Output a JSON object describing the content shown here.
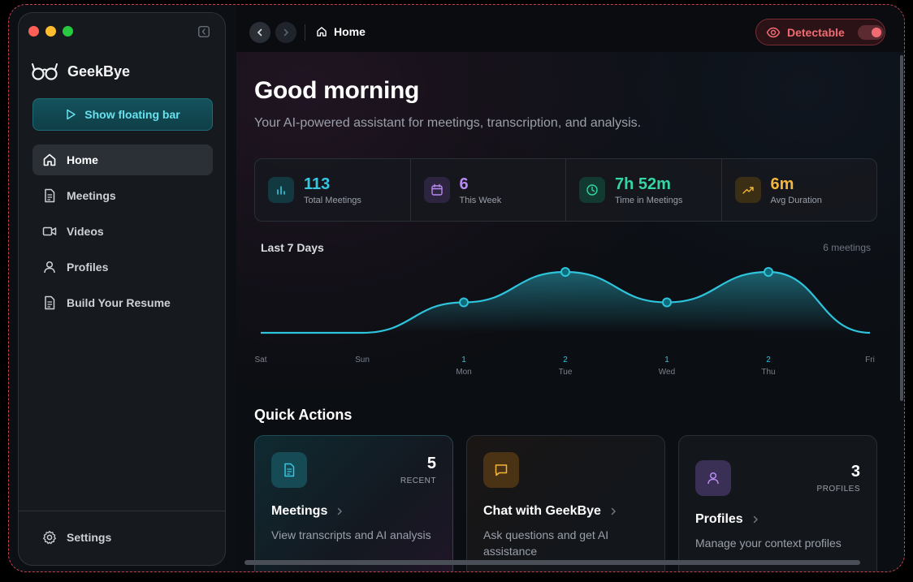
{
  "app": {
    "name": "GeekBye",
    "floating_bar_label": "Show floating bar"
  },
  "sidebar": {
    "items": [
      {
        "label": "Home",
        "icon": "home-icon",
        "active": true
      },
      {
        "label": "Meetings",
        "icon": "document-icon",
        "active": false
      },
      {
        "label": "Videos",
        "icon": "video-icon",
        "active": false
      },
      {
        "label": "Profiles",
        "icon": "user-icon",
        "active": false
      },
      {
        "label": "Build Your Resume",
        "icon": "document-icon",
        "active": false
      }
    ],
    "settings_label": "Settings"
  },
  "topbar": {
    "breadcrumb": "Home",
    "detectable_label": "Detectable",
    "detectable_on": true
  },
  "header": {
    "greeting": "Good morning",
    "subtitle": "Your AI-powered assistant for meetings, transcription, and analysis."
  },
  "stats": [
    {
      "value": "113",
      "label": "Total Meetings",
      "color": "#38c6e0",
      "icon": "bar-chart-icon"
    },
    {
      "value": "6",
      "label": "This Week",
      "color": "#b78bf0",
      "icon": "calendar-icon"
    },
    {
      "value": "7h 52m",
      "label": "Time in Meetings",
      "color": "#35d6a3",
      "icon": "clock-icon"
    },
    {
      "value": "6m",
      "label": "Avg Duration",
      "color": "#f5b53a",
      "icon": "trending-up-icon"
    }
  ],
  "chart_data": {
    "type": "area",
    "title": "Last 7 Days",
    "summary": "6 meetings",
    "categories": [
      "Sat",
      "Sun",
      "Mon",
      "Tue",
      "Wed",
      "Thu",
      "Fri"
    ],
    "values": [
      0,
      0,
      1,
      2,
      1,
      2,
      0
    ],
    "value_labels": [
      "",
      "",
      "1",
      "2",
      "1",
      "2",
      ""
    ],
    "ylim": [
      0,
      2
    ],
    "color": "#2ec4dc"
  },
  "quick_actions": {
    "title": "Quick Actions",
    "cards": [
      {
        "title": "Meetings",
        "count": "5",
        "count_label": "RECENT",
        "desc": "View transcripts and AI analysis",
        "icon": "document-icon",
        "accent": "#38c6e0"
      },
      {
        "title": "Chat with GeekBye",
        "count": "",
        "count_label": "",
        "desc": "Ask questions and get AI assistance",
        "icon": "chat-icon",
        "accent": "#f5b53a"
      },
      {
        "title": "Profiles",
        "count": "3",
        "count_label": "PROFILES",
        "desc": "Manage your context profiles",
        "icon": "user-icon",
        "accent": "#b78bf0"
      }
    ]
  }
}
